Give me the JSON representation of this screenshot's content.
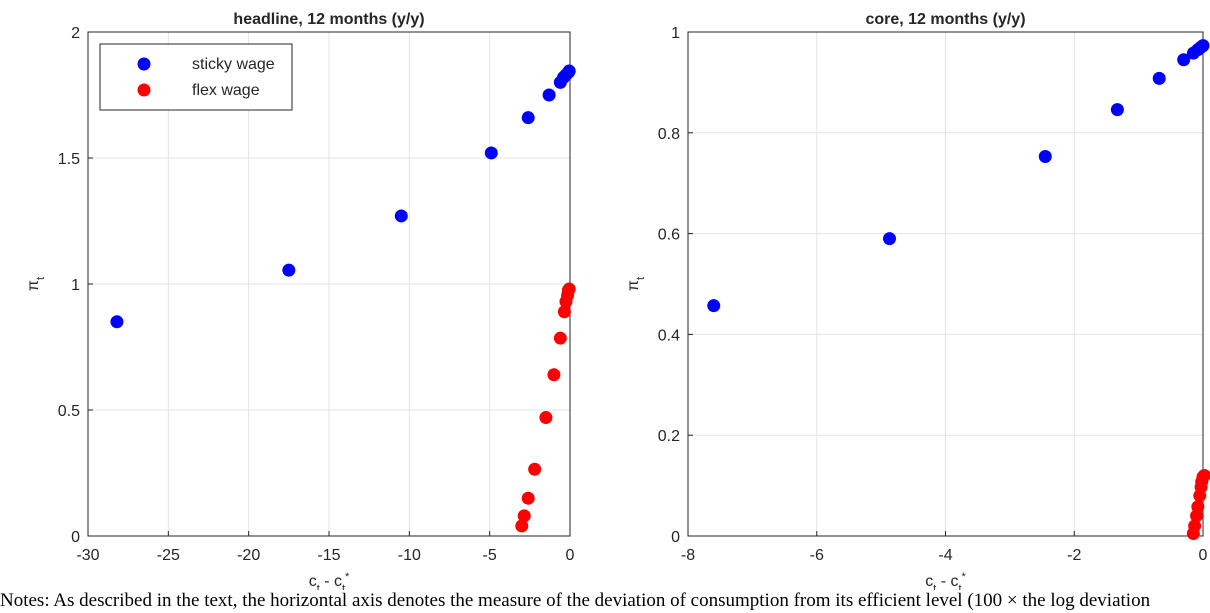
{
  "chart_data": [
    {
      "type": "scatter",
      "title": "headline, 12 months (y/y)",
      "x_label_parts": [
        "c",
        "t",
        " - c",
        "t",
        "*"
      ],
      "y_label_parts": [
        "π",
        "t"
      ],
      "xlim": [
        -30,
        0
      ],
      "xticks": [
        -30,
        -25,
        -20,
        -15,
        -10,
        -5,
        0
      ],
      "ylim": [
        0,
        2
      ],
      "yticks": [
        0,
        0.5,
        1,
        1.5,
        2
      ],
      "grid": true,
      "legend": "northwest",
      "series": [
        {
          "name": "sticky wage",
          "color": "#0000ff",
          "x": [
            -28.2,
            -17.5,
            -10.5,
            -4.9,
            -2.6,
            -1.3,
            -0.6,
            -0.4,
            -0.25,
            -0.1,
            -0.05
          ],
          "values": [
            0.85,
            1.055,
            1.27,
            1.52,
            1.66,
            1.75,
            1.8,
            1.82,
            1.83,
            1.84,
            1.845
          ]
        },
        {
          "name": "flex wage",
          "color": "#ff0000",
          "x": [
            -3.0,
            -2.85,
            -2.6,
            -2.2,
            -1.5,
            -1.0,
            -0.6,
            -0.35,
            -0.25,
            -0.15,
            -0.1,
            -0.05
          ],
          "values": [
            0.04,
            0.08,
            0.15,
            0.265,
            0.47,
            0.64,
            0.785,
            0.89,
            0.93,
            0.955,
            0.975,
            0.98
          ]
        }
      ]
    },
    {
      "type": "scatter",
      "title": "core, 12 months (y/y)",
      "x_label_parts": [
        "c",
        "t",
        " - c",
        "t",
        "*"
      ],
      "y_label_parts": [
        "π",
        "t"
      ],
      "xlim": [
        -8,
        0
      ],
      "xticks": [
        -8,
        -6,
        -4,
        -2,
        0
      ],
      "ylim": [
        0,
        1
      ],
      "yticks": [
        0,
        0.2,
        0.4,
        0.6,
        0.8,
        1
      ],
      "grid": true,
      "series": [
        {
          "name": "sticky wage",
          "color": "#0000ff",
          "x": [
            -7.6,
            -4.87,
            -2.45,
            -1.33,
            -0.68,
            -0.3,
            -0.15,
            -0.08,
            -0.03,
            0
          ],
          "values": [
            0.457,
            0.59,
            0.753,
            0.846,
            0.908,
            0.945,
            0.958,
            0.965,
            0.97,
            0.973
          ]
        },
        {
          "name": "flex wage",
          "color": "#ff0000",
          "x": [
            -0.15,
            -0.13,
            -0.1,
            -0.08,
            -0.05,
            -0.03,
            -0.02,
            0,
            0.02
          ],
          "values": [
            0.005,
            0.02,
            0.04,
            0.058,
            0.08,
            0.097,
            0.108,
            0.117,
            0.12
          ]
        }
      ]
    }
  ],
  "note": "Notes: As described in the text, the horizontal axis denotes the measure of the deviation of consumption from its efficient level (100 × the log deviation"
}
